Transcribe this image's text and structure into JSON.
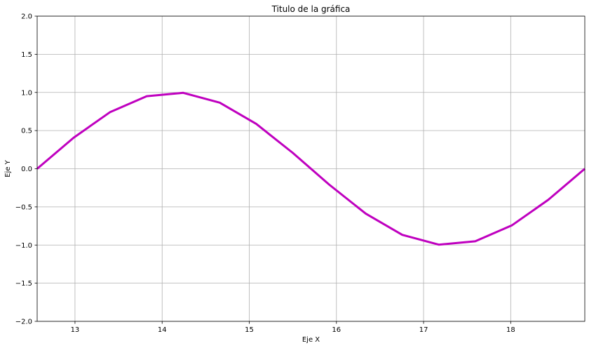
{
  "chart_data": {
    "type": "line",
    "title": "Titulo de la gráfica",
    "xlabel": "Eje X",
    "ylabel": "Eje Y",
    "xlim": [
      12.566,
      18.85
    ],
    "ylim": [
      -2.0,
      2.0
    ],
    "xticks": [
      13,
      14,
      15,
      16,
      17,
      18
    ],
    "yticks": [
      -2.0,
      -1.5,
      -1.0,
      -0.5,
      0.0,
      0.5,
      1.0,
      1.5,
      2.0
    ],
    "xtick_labels": [
      "13",
      "14",
      "15",
      "16",
      "17",
      "18"
    ],
    "ytick_labels": [
      "−2.0",
      "−1.5",
      "−1.0",
      "−0.5",
      "0.0",
      "0.5",
      "1.0",
      "1.5",
      "2.0"
    ],
    "grid": true,
    "series": [
      {
        "color": "#bf00bf",
        "x": [
          12.566,
          12.985,
          13.404,
          13.823,
          14.242,
          14.661,
          15.08,
          15.499,
          15.917,
          16.336,
          16.755,
          17.174,
          17.593,
          18.012,
          18.431,
          18.85
        ],
        "y": [
          0.0,
          0.407,
          0.743,
          0.951,
          0.995,
          0.866,
          0.588,
          0.208,
          -0.208,
          -0.588,
          -0.866,
          -0.995,
          -0.951,
          -0.743,
          -0.407,
          0.0
        ]
      }
    ]
  }
}
